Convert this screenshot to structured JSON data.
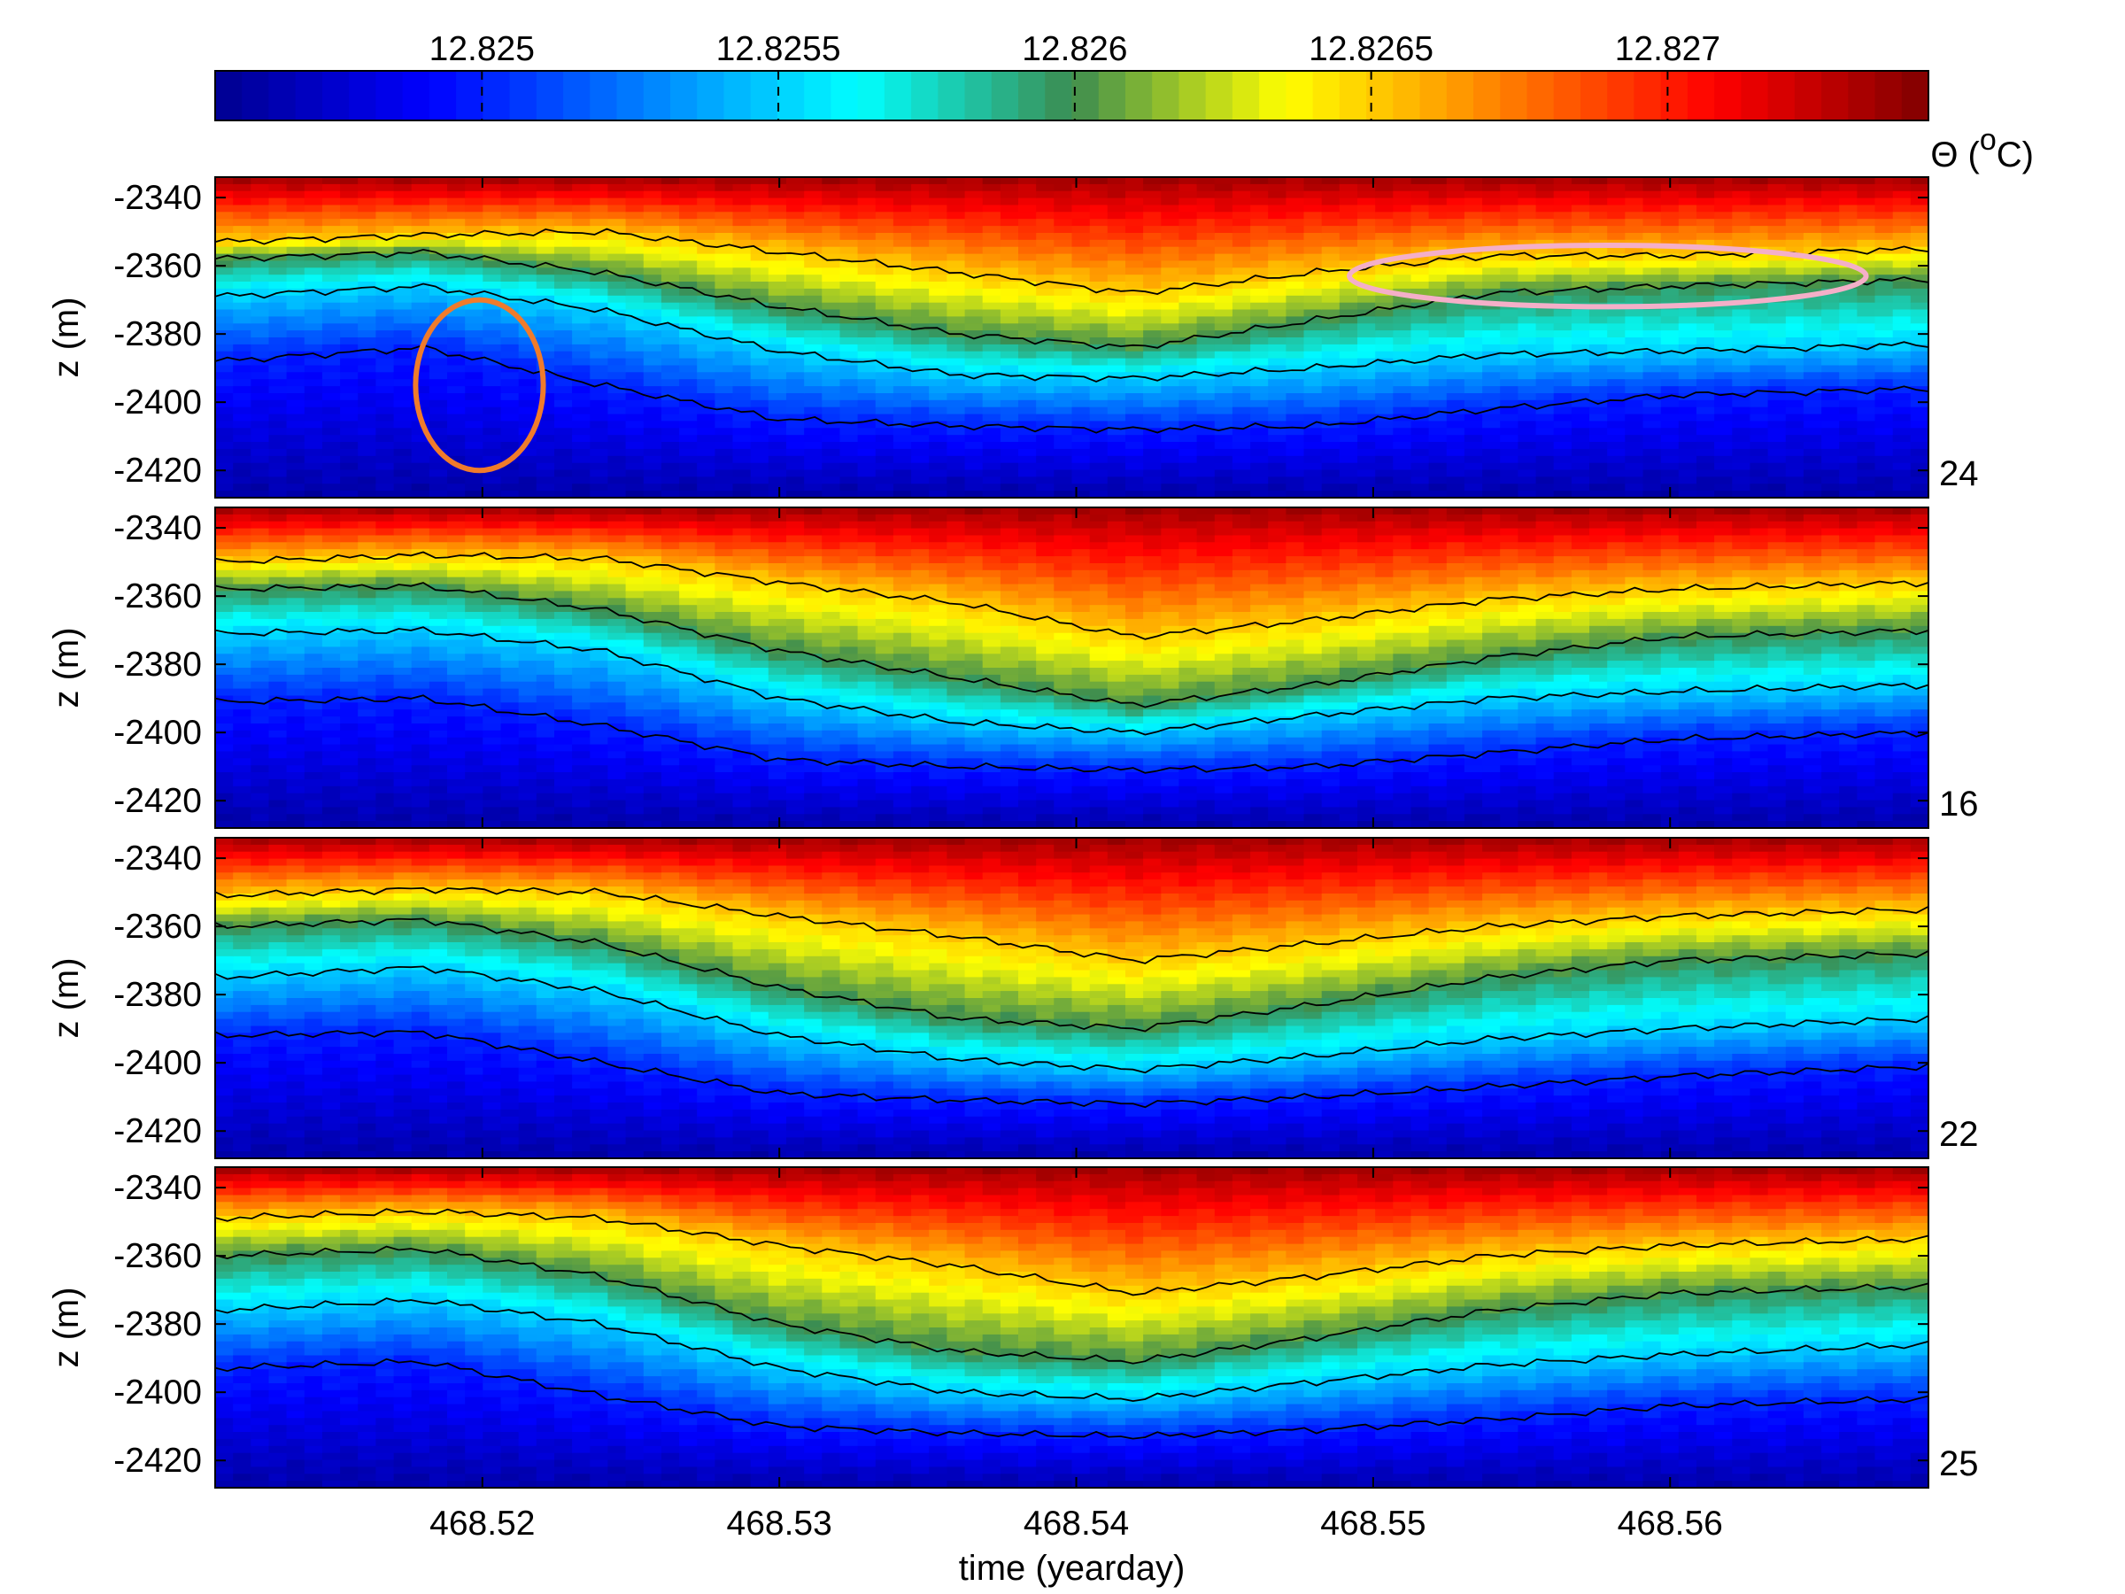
{
  "chart_data": {
    "type": "heatmap",
    "colorbar": {
      "label": "Θ (°C)",
      "label_symbol": "Θ (",
      "label_unit_sup": "o",
      "label_unit": "C)",
      "ticks": [
        12.825,
        12.8255,
        12.826,
        12.8265,
        12.827
      ],
      "tick_labels": [
        "12.825",
        "12.8255",
        "12.826",
        "12.8265",
        "12.827"
      ],
      "range": [
        12.82455,
        12.82744
      ],
      "colormap": "jet",
      "colormap_stops": [
        "#00008f",
        "#0000ff",
        "#0080ff",
        "#00ffff",
        "#3c8c50",
        "#ffff00",
        "#ff8000",
        "#ff0000",
        "#800000"
      ]
    },
    "xlabel": "time (yearday)",
    "xlim": [
      468.511,
      468.5687
    ],
    "x_ticks": [
      468.52,
      468.53,
      468.54,
      468.55,
      468.56
    ],
    "x_tick_labels": [
      "468.52",
      "468.53",
      "468.54",
      "468.55",
      "468.56"
    ],
    "ylabel": "z (m)",
    "ylim": [
      -2428,
      -2334
    ],
    "y_ticks": [
      -2340,
      -2360,
      -2380,
      -2400,
      -2420
    ],
    "y_tick_labels": [
      "-2340",
      "-2360",
      "-2380",
      "-2400",
      "-2420"
    ],
    "panels": [
      {
        "label": "24",
        "label_large": true,
        "highlights": [
          {
            "shape": "ellipse",
            "color": "#f07b2b",
            "cx": 468.5199,
            "cy": -2395,
            "rx": 0.00215,
            "ry": 25
          },
          {
            "shape": "ellipse",
            "color": "#f4afc8",
            "cx": 468.5579,
            "cy": -2363,
            "rx": 0.0087,
            "ry": 9
          }
        ],
        "contour_depths": {
          "time": [
            468.511,
            468.518,
            468.524,
            468.53,
            468.536,
            468.542,
            468.548,
            468.554,
            468.56,
            468.5687
          ],
          "12.8255": [
            -2369,
            -2366,
            -2373,
            -2385,
            -2392,
            -2393,
            -2390,
            -2386,
            -2385,
            -2383
          ],
          "12.826": [
            -2358,
            -2356,
            -2362,
            -2372,
            -2380,
            -2384,
            -2376,
            -2368,
            -2366,
            -2364
          ],
          "12.8265": [
            -2353,
            -2351,
            -2350,
            -2356,
            -2362,
            -2368,
            -2362,
            -2357,
            -2357,
            -2355
          ],
          "12.825": [
            -2388,
            -2384,
            -2395,
            -2405,
            -2407,
            -2408,
            -2407,
            -2402,
            -2398,
            -2396
          ]
        }
      },
      {
        "label": "16",
        "label_large": false,
        "highlights": [],
        "contour_depths": {
          "time": [
            468.511,
            468.518,
            468.524,
            468.53,
            468.536,
            468.542,
            468.548,
            468.554,
            468.56,
            468.5687
          ],
          "12.8255": [
            -2371,
            -2370,
            -2376,
            -2390,
            -2397,
            -2400,
            -2395,
            -2390,
            -2388,
            -2386
          ],
          "12.826": [
            -2358,
            -2357,
            -2364,
            -2376,
            -2384,
            -2392,
            -2386,
            -2378,
            -2372,
            -2370
          ],
          "12.8265": [
            -2350,
            -2348,
            -2349,
            -2356,
            -2362,
            -2372,
            -2367,
            -2361,
            -2358,
            -2356
          ],
          "12.825": [
            -2391,
            -2390,
            -2398,
            -2408,
            -2410,
            -2411,
            -2410,
            -2406,
            -2402,
            -2400
          ]
        }
      },
      {
        "label": "22",
        "label_large": false,
        "highlights": [],
        "contour_depths": {
          "time": [
            468.511,
            468.518,
            468.524,
            468.53,
            468.536,
            468.542,
            468.548,
            468.554,
            468.56,
            468.5687
          ],
          "12.8255": [
            -2375,
            -2372,
            -2379,
            -2392,
            -2399,
            -2402,
            -2398,
            -2393,
            -2390,
            -2387
          ],
          "12.826": [
            -2360,
            -2358,
            -2365,
            -2378,
            -2387,
            -2390,
            -2383,
            -2375,
            -2370,
            -2368
          ],
          "12.8265": [
            -2351,
            -2349,
            -2350,
            -2357,
            -2363,
            -2370,
            -2365,
            -2360,
            -2357,
            -2355
          ],
          "12.825": [
            -2392,
            -2391,
            -2400,
            -2409,
            -2411,
            -2412,
            -2410,
            -2407,
            -2404,
            -2401
          ]
        }
      },
      {
        "label": "25",
        "label_large": false,
        "highlights": [],
        "contour_depths": {
          "time": [
            468.511,
            468.518,
            468.524,
            468.53,
            468.536,
            468.542,
            468.548,
            468.554,
            468.56,
            468.5687
          ],
          "12.8255": [
            -2376,
            -2373,
            -2380,
            -2393,
            -2400,
            -2402,
            -2397,
            -2392,
            -2389,
            -2386
          ],
          "12.826": [
            -2360,
            -2358,
            -2366,
            -2380,
            -2388,
            -2391,
            -2384,
            -2376,
            -2371,
            -2369
          ],
          "12.8265": [
            -2349,
            -2347,
            -2349,
            -2357,
            -2363,
            -2371,
            -2366,
            -2360,
            -2357,
            -2355
          ],
          "12.825": [
            -2393,
            -2391,
            -2401,
            -2410,
            -2412,
            -2413,
            -2411,
            -2408,
            -2404,
            -2402
          ]
        }
      }
    ],
    "grid": false
  }
}
